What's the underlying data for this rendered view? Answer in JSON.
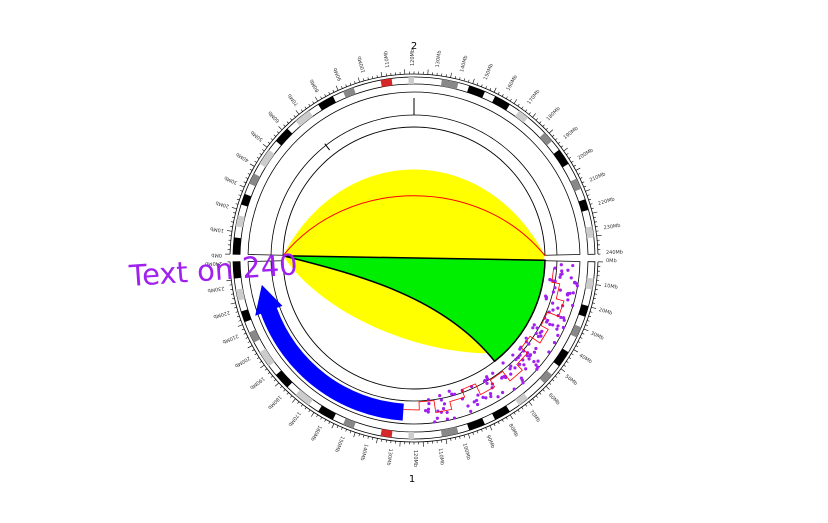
{
  "chromosomes": [
    {
      "name": "2"
    },
    {
      "name": "1"
    }
  ],
  "annotation_text": "Text on 240",
  "colors": {
    "yellow_fill": "#ffff00",
    "green_fill": "#00ee00",
    "blue_arrow": "#0000ff",
    "scatter_points": "#a020f0",
    "outline_red": "#ff0000",
    "centromere_red": "#d62728",
    "text_color": "#a020f0"
  },
  "tick_labels_top": [
    "0Mb",
    "10Mb",
    "20Mb",
    "30Mb",
    "40Mb",
    "50Mb",
    "60Mb",
    "70Mb",
    "80Mb",
    "90Mb",
    "100Mb",
    "110Mb",
    "120Mb",
    "130Mb",
    "140Mb",
    "150Mb",
    "160Mb",
    "170Mb",
    "180Mb",
    "190Mb",
    "200Mb",
    "210Mb",
    "220Mb",
    "230Mb",
    "240Mb"
  ],
  "tick_labels_bottom": [
    "0Mb",
    "10Mb",
    "20Mb",
    "30Mb",
    "40Mb",
    "50Mb",
    "60Mb",
    "70Mb",
    "80Mb",
    "90Mb",
    "100Mb",
    "110Mb",
    "120Mb",
    "130Mb",
    "140Mb",
    "150Mb",
    "160Mb",
    "170Mb",
    "180Mb",
    "190Mb",
    "200Mb",
    "210Mb",
    "220Mb",
    "230Mb",
    "240Mb"
  ]
}
